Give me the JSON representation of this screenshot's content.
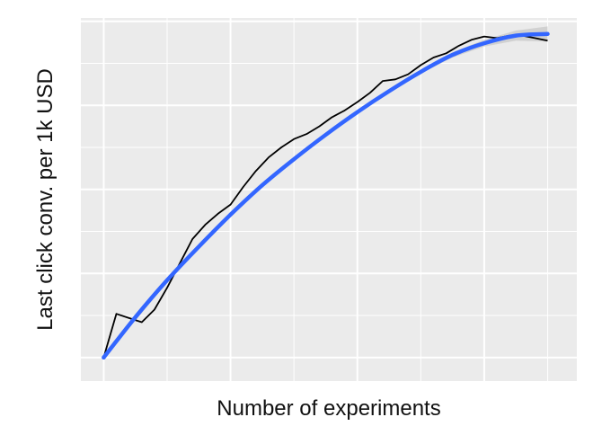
{
  "chart_data": {
    "type": "line",
    "title": "",
    "xlabel": "Number of experiments",
    "ylabel": "Last click conv. per 1k USD",
    "x_tick_labels_visible": false,
    "y_tick_labels_visible": false,
    "grid": true,
    "background": "#EBEBEB",
    "xlim": [
      -0.18,
      3.73
    ],
    "ylim": [
      -0.28,
      4.04
    ],
    "series": [
      {
        "kind": "observed",
        "color": "#000000",
        "x": [
          0,
          0.1,
          0.2,
          0.3,
          0.4,
          0.5,
          0.6,
          0.7,
          0.8,
          0.9,
          1.0,
          1.1,
          1.2,
          1.3,
          1.4,
          1.5,
          1.6,
          1.7,
          1.8,
          1.9,
          2.0,
          2.1,
          2.2,
          2.3,
          2.4,
          2.5,
          2.6,
          2.7,
          2.8,
          2.9,
          3.0,
          3.1,
          3.2,
          3.3,
          3.4,
          3.5
        ],
        "y": [
          0.0,
          0.52,
          0.47,
          0.42,
          0.57,
          0.83,
          1.12,
          1.41,
          1.58,
          1.71,
          1.82,
          2.03,
          2.22,
          2.38,
          2.5,
          2.6,
          2.66,
          2.75,
          2.86,
          2.94,
          3.04,
          3.15,
          3.29,
          3.31,
          3.37,
          3.48,
          3.57,
          3.62,
          3.71,
          3.78,
          3.82,
          3.8,
          3.83,
          3.83,
          3.8,
          3.77
        ]
      },
      {
        "kind": "smooth",
        "color": "#3366FF",
        "band_color": "#C8C8C8",
        "x": [
          0,
          0.25,
          0.5,
          0.75,
          1.0,
          1.25,
          1.5,
          1.75,
          2.0,
          2.25,
          2.5,
          2.75,
          3.0,
          3.25,
          3.5
        ],
        "y": [
          0.0,
          0.48,
          0.92,
          1.32,
          1.7,
          2.05,
          2.36,
          2.65,
          2.92,
          3.17,
          3.4,
          3.6,
          3.74,
          3.83,
          3.85
        ],
        "lower": [
          0.0,
          0.44,
          0.89,
          1.3,
          1.68,
          2.03,
          2.34,
          2.63,
          2.9,
          3.15,
          3.38,
          3.57,
          3.7,
          3.77,
          3.76
        ],
        "upper": [
          0.0,
          0.52,
          0.95,
          1.34,
          1.72,
          2.07,
          2.38,
          2.67,
          2.94,
          3.19,
          3.42,
          3.63,
          3.78,
          3.89,
          3.94
        ]
      }
    ]
  }
}
